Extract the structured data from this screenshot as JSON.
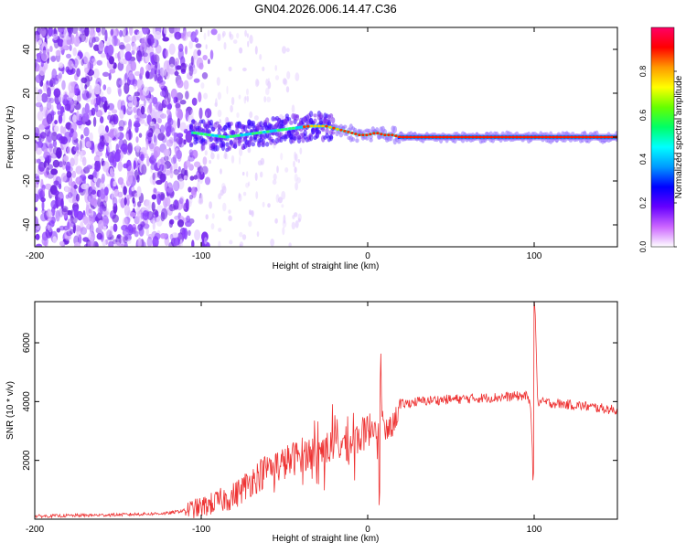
{
  "chart_data": [
    {
      "type": "heatmap",
      "title": "GN04.2026.006.14.47.C36",
      "xlabel": "Height of straight line (km)",
      "ylabel": "Frequency (Hz)",
      "xlim": [
        -200,
        150
      ],
      "ylim": [
        -50,
        50
      ],
      "xticks": [
        -200,
        -100,
        0,
        100
      ],
      "yticks": [
        -40,
        -20,
        0,
        20,
        40
      ],
      "colorbar": {
        "label": "Normalized spectral amplitude",
        "range": [
          0,
          1
        ],
        "ticks": [
          "0.0",
          "0.2",
          "0.4",
          "0.6",
          "0.8"
        ],
        "colors": [
          "#ffffff",
          "#cc66ff",
          "#6600ff",
          "#0000ff",
          "#0099ff",
          "#00ffff",
          "#00ff66",
          "#66ff00",
          "#ffff00",
          "#ff9900",
          "#ff0000",
          "#ff0066"
        ]
      },
      "signal_track": {
        "x": [
          -105,
          -95,
          -85,
          -75,
          -65,
          -55,
          -45,
          -35,
          -25,
          -15,
          -10,
          -5,
          0,
          5,
          10,
          15,
          20,
          40,
          60,
          80,
          95,
          98,
          100,
          110,
          150
        ],
        "freq_hz": [
          2,
          1,
          0,
          1,
          2,
          3,
          4,
          5,
          5,
          3,
          2,
          1,
          1,
          2,
          1,
          1,
          0,
          0,
          0,
          0,
          0,
          0,
          0,
          0,
          0
        ]
      },
      "noise_region_x": [
        -200,
        -100
      ]
    },
    {
      "type": "line",
      "xlabel": "Height of straight line (km)",
      "ylabel": "SNR (10 * v/v)",
      "xlim": [
        -200,
        150
      ],
      "ylim": [
        0,
        7400
      ],
      "xticks": [
        -200,
        -100,
        0,
        100
      ],
      "yticks": [
        2000,
        4000,
        6000
      ],
      "series": [
        {
          "name": "SNR",
          "color": "#ee3333",
          "x": [
            -200,
            -150,
            -120,
            -100,
            -80,
            -70,
            -60,
            -50,
            -40,
            -30,
            -20,
            -10,
            0,
            5,
            8,
            10,
            15,
            20,
            30,
            40,
            60,
            80,
            95,
            98,
            99.5,
            100.5,
            102,
            110,
            130,
            150
          ],
          "y": [
            100,
            150,
            200,
            400,
            800,
            1300,
            1700,
            1900,
            2200,
            2300,
            2500,
            2600,
            3000,
            3300,
            3900,
            2900,
            3200,
            3900,
            4000,
            4050,
            4100,
            4150,
            4200,
            3900,
            1400,
            7400,
            4000,
            3950,
            3850,
            3700
          ]
        }
      ]
    }
  ]
}
